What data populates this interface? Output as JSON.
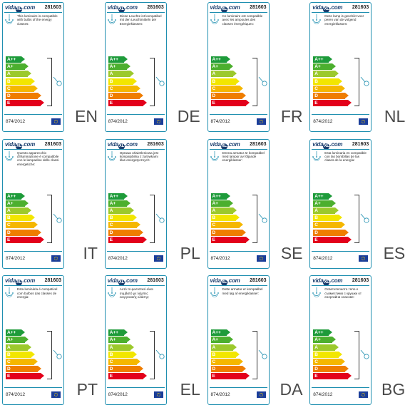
{
  "code": "281603",
  "regulation": "874/2012",
  "logo_text": "vida",
  "logo_suffix": ".com",
  "classes": [
    {
      "label": "A++",
      "color": "#1e9b3a"
    },
    {
      "label": "A+",
      "color": "#4caf2e"
    },
    {
      "label": "A",
      "color": "#9cc92c"
    },
    {
      "label": "B",
      "color": "#f2e600"
    },
    {
      "label": "C",
      "color": "#f5b700"
    },
    {
      "label": "D",
      "color": "#ef7d00"
    },
    {
      "label": "E",
      "color": "#e3001b"
    }
  ],
  "labels": [
    {
      "lang": "EN",
      "text": "This luminaire is compatible with bulbs of the energy classes:"
    },
    {
      "lang": "DE",
      "text": "Diese Leuchte ist kompatibel mit den Leuchtmitteln der Energieklassen:"
    },
    {
      "lang": "FR",
      "text": "Ce luminaire est compatible avec les ampoules des classes énergétiques:"
    },
    {
      "lang": "NL",
      "text": "Deze lamp is geschikt voor peren van de volgend energieklassen:"
    },
    {
      "lang": "IT",
      "text": "Questo apparecchio d'illuminazione è compatibile con le lampadine delle classi energetiche:"
    },
    {
      "lang": "PL",
      "text": "Oprawa oświetleniowa jest kompatybilna z żarówkami klas energetycznych:"
    },
    {
      "lang": "SE",
      "text": "Denna armatur är kompatibel med lampor av följande energiklasser:"
    },
    {
      "lang": "ES",
      "text": "Esta luminaria es compatible con las bombillas de las clases de la energía:"
    },
    {
      "lang": "PT",
      "text": "Esta luminária é compatível com bulbos das classes de energia:"
    },
    {
      "lang": "EL",
      "text": "Αυτό το φωτιστικό είναι συμβατό με λάμπες ενεργειακής κλάσης:"
    },
    {
      "lang": "DA",
      "text": "Dette armatur er kompatibel med løg af energiklasser:"
    },
    {
      "lang": "BG",
      "text": "Осветителното тяло е съвместимо с крушки от енергийни класове:"
    }
  ]
}
